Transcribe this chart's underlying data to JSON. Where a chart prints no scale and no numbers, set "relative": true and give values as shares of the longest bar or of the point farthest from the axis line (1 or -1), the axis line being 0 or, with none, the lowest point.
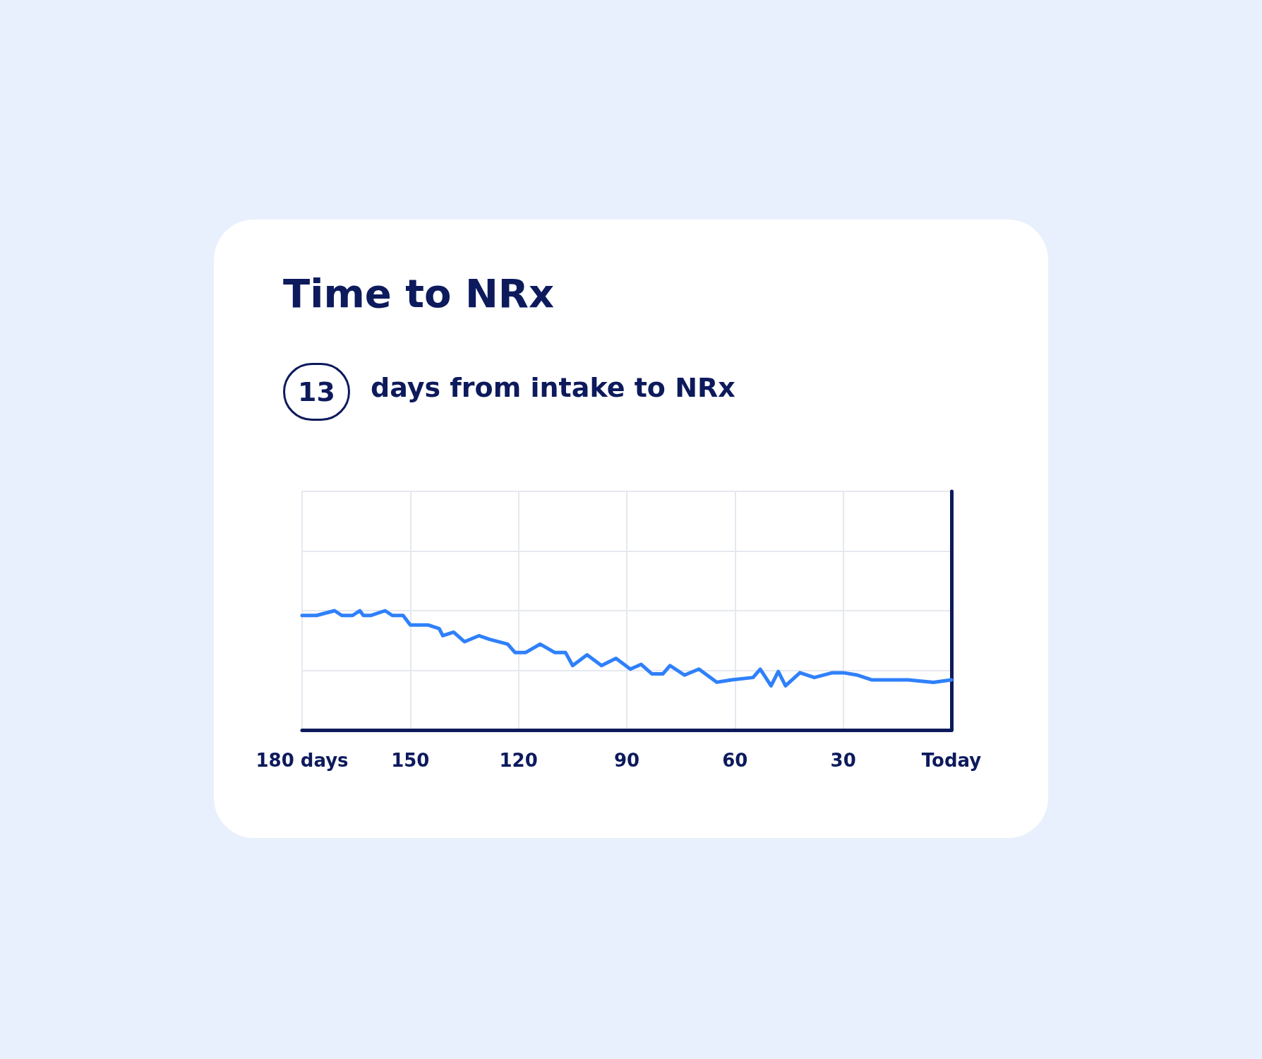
{
  "chart_data": {
    "type": "line",
    "title": "Time to NRx",
    "annotations": [
      "13",
      "days from intake to NRx"
    ],
    "relative": true,
    "x": [
      180,
      176,
      171,
      169,
      166,
      164,
      163,
      161,
      157,
      155,
      152,
      150,
      145,
      142,
      141,
      138,
      135,
      131,
      128,
      123,
      121,
      118,
      114,
      110,
      107,
      105,
      101,
      97,
      93,
      89,
      86,
      83,
      80,
      78,
      74,
      70,
      65,
      61,
      55,
      53,
      50,
      48,
      46,
      42,
      38,
      33,
      30,
      26,
      22,
      18,
      12,
      5,
      0
    ],
    "series": [
      {
        "color": "#2f80fa",
        "values": [
          0.96,
          0.96,
          1,
          0.96,
          0.96,
          1,
          0.96,
          0.96,
          1,
          0.96,
          0.96,
          0.88,
          0.88,
          0.85,
          0.79,
          0.82,
          0.74,
          0.79,
          0.76,
          0.72,
          0.65,
          0.65,
          0.72,
          0.65,
          0.65,
          0.54,
          0.63,
          0.54,
          0.6,
          0.51,
          0.55,
          0.47,
          0.47,
          0.54,
          0.46,
          0.51,
          0.4,
          0.42,
          0.44,
          0.51,
          0.37,
          0.49,
          0.37,
          0.48,
          0.44,
          0.48,
          0.48,
          0.46,
          0.42,
          0.42,
          0.42,
          0.4,
          0.42
        ]
      }
    ],
    "xlim": [
      180,
      0
    ],
    "xticks": [
      {
        "value": 180,
        "label": "180 days"
      },
      150,
      120,
      90,
      60,
      30,
      {
        "value": 0,
        "label": "Today"
      }
    ],
    "grid": true,
    "marker": "none",
    "line_style": "solid"
  }
}
